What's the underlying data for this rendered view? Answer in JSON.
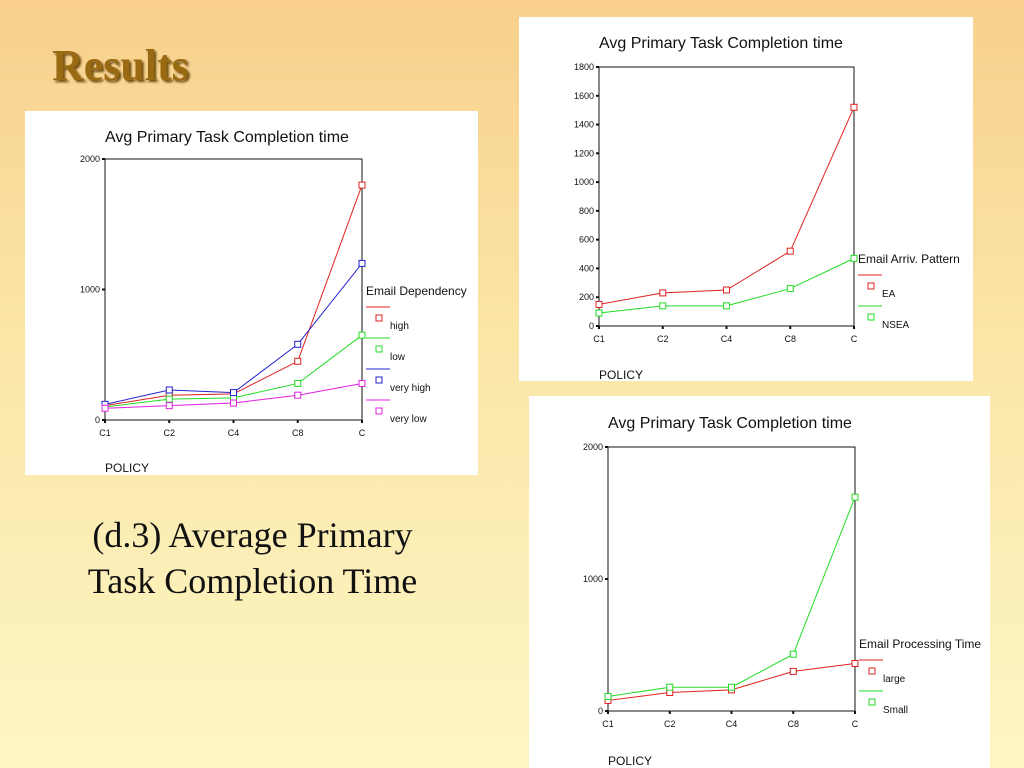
{
  "slide": {
    "title": "Results",
    "caption_line1": "(d.3) Average Primary",
    "caption_line2": "Task Completion Time"
  },
  "chart_data": [
    {
      "type": "line",
      "title": "Avg Primary Task Completion time",
      "xlabel": "POLICY",
      "ylabel": "",
      "categories": [
        "C1",
        "C2",
        "C4",
        "C8",
        "C"
      ],
      "ylim": [
        0,
        2000
      ],
      "yticks": [
        0,
        1000,
        2000
      ],
      "grid": false,
      "legend_position": "right",
      "legend_title": "Email Dependency",
      "series": [
        {
          "name": "high",
          "color": "#e02020",
          "values": [
            110,
            190,
            200,
            450,
            1800
          ]
        },
        {
          "name": "low",
          "color": "#22dd22",
          "values": [
            100,
            160,
            170,
            280,
            650
          ]
        },
        {
          "name": "very high",
          "color": "#2222cc",
          "values": [
            120,
            230,
            210,
            580,
            1200
          ]
        },
        {
          "name": "very low",
          "color": "#e020e0",
          "values": [
            90,
            110,
            130,
            190,
            280
          ]
        }
      ]
    },
    {
      "type": "line",
      "title": "Avg Primary Task Completion time",
      "xlabel": "POLICY",
      "ylabel": "",
      "categories": [
        "C1",
        "C2",
        "C4",
        "C8",
        "C"
      ],
      "ylim": [
        0,
        1800
      ],
      "yticks": [
        0,
        200,
        400,
        600,
        800,
        1000,
        1200,
        1400,
        1600,
        1800
      ],
      "grid": false,
      "legend_position": "right",
      "legend_title": "Email Arriv. Pattern",
      "series": [
        {
          "name": "EA",
          "color": "#e02020",
          "values": [
            150,
            230,
            250,
            520,
            1520
          ]
        },
        {
          "name": "NSEA",
          "color": "#22dd22",
          "values": [
            90,
            140,
            140,
            260,
            470
          ]
        }
      ]
    },
    {
      "type": "line",
      "title": "Avg Primary Task Completion time",
      "xlabel": "POLICY",
      "ylabel": "",
      "categories": [
        "C1",
        "C2",
        "C4",
        "C8",
        "C"
      ],
      "ylim": [
        0,
        2000
      ],
      "yticks": [
        0,
        1000,
        2000
      ],
      "grid": false,
      "legend_position": "right",
      "legend_title": "Email Processing Time",
      "series": [
        {
          "name": "large",
          "color": "#e02020",
          "values": [
            80,
            140,
            160,
            300,
            360
          ]
        },
        {
          "name": "Small",
          "color": "#22dd22",
          "values": [
            110,
            180,
            180,
            430,
            1620
          ]
        }
      ]
    }
  ]
}
